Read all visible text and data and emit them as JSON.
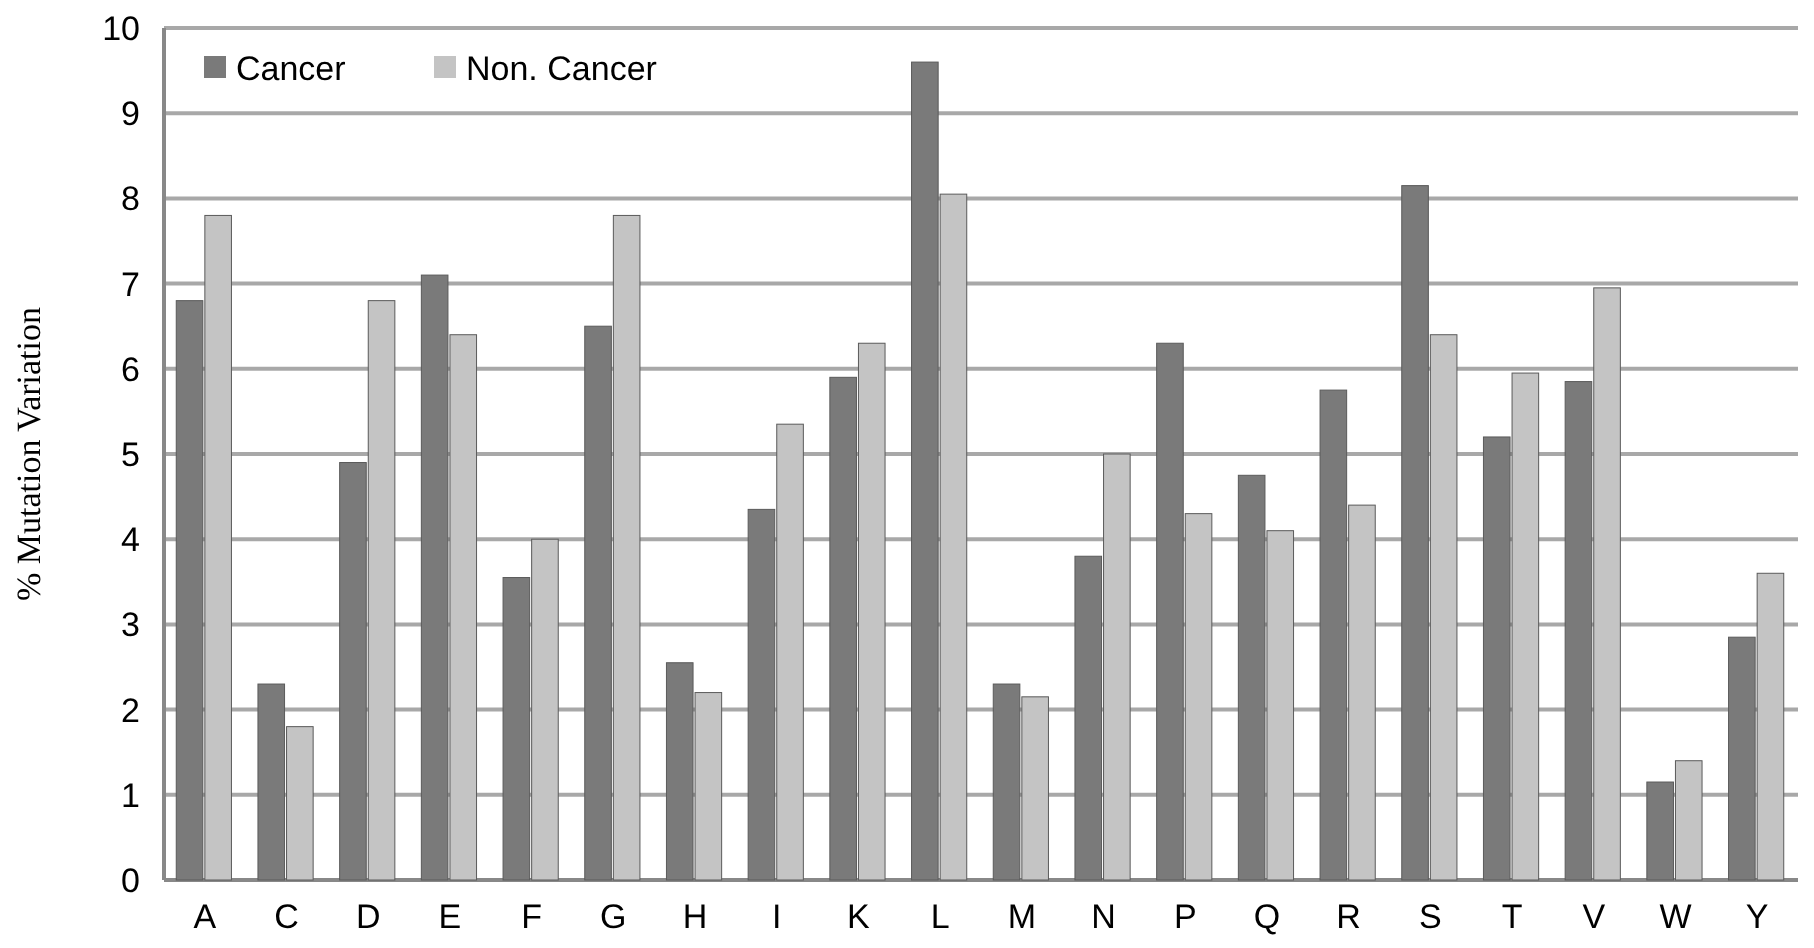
{
  "chart_data": {
    "type": "bar",
    "ylabel": "% Mutation Variation",
    "categories": [
      "A",
      "C",
      "D",
      "E",
      "F",
      "G",
      "H",
      "I",
      "K",
      "L",
      "M",
      "N",
      "P",
      "Q",
      "R",
      "S",
      "T",
      "V",
      "W",
      "Y"
    ],
    "series": [
      {
        "name": "Cancer",
        "color": "#7a7a7a",
        "values": [
          6.8,
          2.3,
          4.9,
          7.1,
          3.55,
          6.5,
          2.55,
          4.35,
          5.9,
          9.6,
          2.3,
          3.8,
          6.3,
          4.75,
          5.75,
          8.15,
          5.2,
          5.85,
          1.15,
          2.85
        ]
      },
      {
        "name": "Non. Cancer",
        "color": "#c4c4c4",
        "values": [
          7.8,
          1.8,
          6.8,
          6.4,
          4.0,
          7.8,
          2.2,
          5.35,
          6.3,
          8.05,
          2.15,
          5.0,
          4.3,
          4.1,
          4.4,
          6.4,
          5.95,
          6.95,
          1.4,
          3.6
        ]
      }
    ],
    "ylim": [
      0,
      10
    ],
    "yticks": [
      0,
      1,
      2,
      3,
      4,
      5,
      6,
      7,
      8,
      9,
      10
    ],
    "grid": "y",
    "legend": "top left"
  }
}
